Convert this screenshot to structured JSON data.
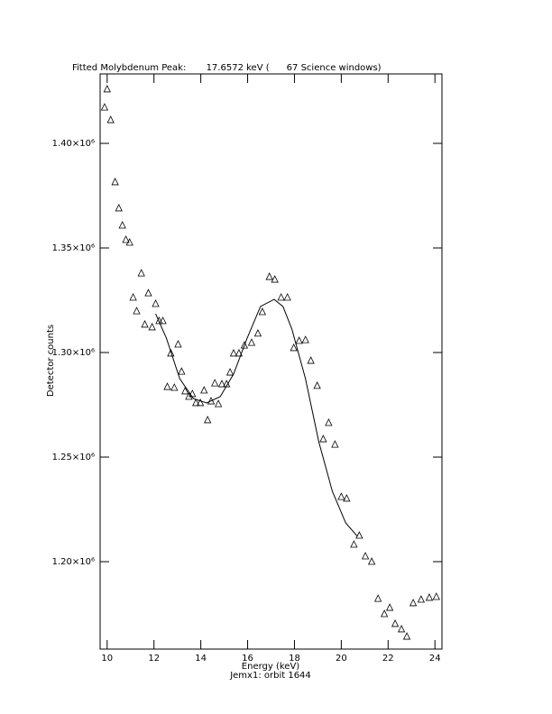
{
  "chart_data": {
    "type": "scatter",
    "title": "Fitted Molybdenum Peak:       17.6572 keV (      67 Science windows)",
    "x_label": "Energy (keV)",
    "subtitle": "Jemx1: orbit 1644",
    "y_label": "Detector counts",
    "xlim": [
      9.7,
      24.3
    ],
    "ylim": [
      1158200,
      1433200
    ],
    "xticks": [
      10,
      12,
      14,
      16,
      18,
      20,
      22,
      24
    ],
    "yticks": [
      {
        "value": 1200000,
        "label": "1.20×10⁶"
      },
      {
        "value": 1250000,
        "label": "1.25×10⁶"
      },
      {
        "value": 1300000,
        "label": "1.30×10⁶"
      },
      {
        "value": 1350000,
        "label": "1.35×10⁶"
      },
      {
        "value": 1400000,
        "label": "1.40×10⁶"
      }
    ],
    "series": [
      {
        "type": "scatter",
        "color": "#000000",
        "x": [
          9.89,
          10.0,
          10.15,
          10.34,
          10.5,
          10.65,
          10.8,
          10.96,
          11.11,
          11.26,
          11.46,
          11.61,
          11.76,
          11.92,
          12.07,
          12.22,
          12.38,
          12.57,
          12.72,
          12.87,
          13.03,
          13.18,
          13.33,
          13.49,
          13.64,
          13.79,
          13.98,
          14.14,
          14.29,
          14.44,
          14.6,
          14.75,
          14.9,
          15.1,
          15.25,
          15.4,
          15.63,
          15.86,
          16.17,
          16.44,
          16.63,
          16.93,
          17.16,
          17.43,
          17.7,
          17.97,
          18.2,
          18.47,
          18.7,
          18.97,
          19.23,
          19.46,
          19.73,
          20.0,
          20.23,
          20.54,
          20.77,
          21.03,
          21.3,
          21.57,
          21.84,
          22.07,
          22.3,
          22.57,
          22.8,
          23.07,
          23.41,
          23.76,
          24.06
        ],
        "values": [
          1417200,
          1425900,
          1411200,
          1381500,
          1369000,
          1360800,
          1353900,
          1352600,
          1326300,
          1319800,
          1337900,
          1313400,
          1328400,
          1312100,
          1323300,
          1315100,
          1315100,
          1283600,
          1299600,
          1283200,
          1303900,
          1290900,
          1281500,
          1278900,
          1280200,
          1275900,
          1275900,
          1281900,
          1267700,
          1276700,
          1285300,
          1275400,
          1284900,
          1284900,
          1290500,
          1299600,
          1299600,
          1303400,
          1304700,
          1309100,
          1319400,
          1336200,
          1334900,
          1326300,
          1326300,
          1302200,
          1305600,
          1306000,
          1296100,
          1284100,
          1258600,
          1266400,
          1256000,
          1231000,
          1230200,
          1208200,
          1212500,
          1202600,
          1200000,
          1182300,
          1175000,
          1178000,
          1170300,
          1167700,
          1164200,
          1180200,
          1181900,
          1182800,
          1183200
        ]
      },
      {
        "type": "line",
        "color": "#000000",
        "x": [
          12.07,
          12.53,
          13.1,
          13.68,
          14.25,
          14.83,
          15.4,
          15.98,
          16.55,
          17.13,
          17.51,
          17.89,
          18.47,
          19.04,
          19.62,
          20.19,
          20.69
        ],
        "values": [
          1318500,
          1306900,
          1287500,
          1278000,
          1275900,
          1278900,
          1289700,
          1306900,
          1322000,
          1325400,
          1322000,
          1311200,
          1287500,
          1257300,
          1233600,
          1218500,
          1212100
        ]
      }
    ]
  }
}
